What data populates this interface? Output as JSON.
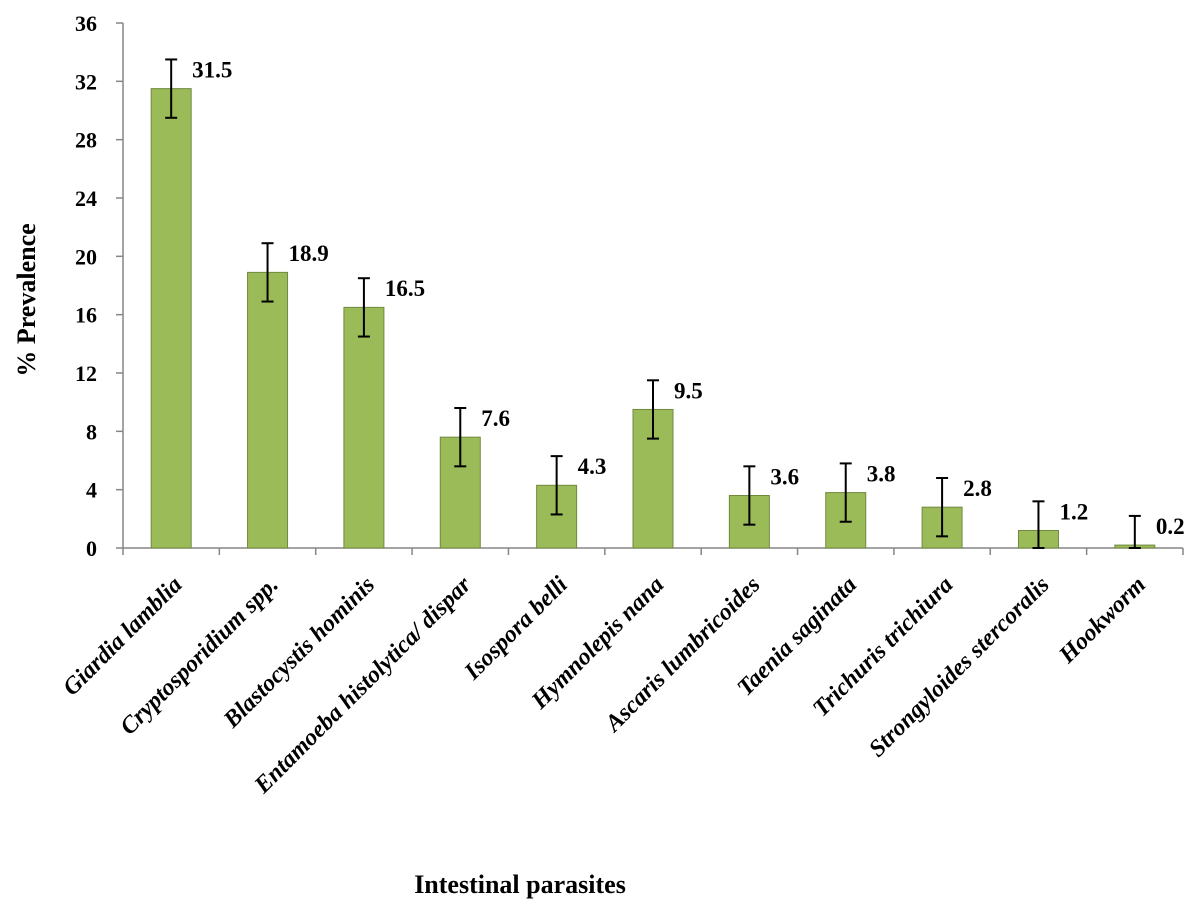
{
  "chart_data": {
    "type": "bar",
    "title": "",
    "xlabel": "Intestinal parasites",
    "ylabel": "% Prevalence",
    "ylim": [
      0,
      36
    ],
    "yticks": [
      0,
      4,
      8,
      12,
      16,
      20,
      24,
      28,
      32,
      36
    ],
    "grid": false,
    "legend": "none",
    "bar_color": "#9bbb59",
    "bar_edge_color": "#71893f",
    "error_bar_color": "#000000",
    "categories": [
      "Giardia lamblia",
      "Cryptosporidium spp.",
      "Blastocystis hominis",
      "Entamoeba histolytica/ dispar",
      "Isospora belli",
      "Hymnolepis nana",
      "Ascaris lumbricoides",
      "Taenia saginata",
      "Trichuris trichiura",
      "Strongyloides stercoralis",
      "Hookworm"
    ],
    "values": [
      31.5,
      18.9,
      16.5,
      7.6,
      4.3,
      9.5,
      3.6,
      3.8,
      2.8,
      1.2,
      0.2
    ],
    "data_labels": [
      "31.5",
      "18.9",
      "16.5",
      "7.6",
      "4.3",
      "9.5",
      "3.6",
      "3.8",
      "2.8",
      "1.2",
      "0.2"
    ],
    "error": [
      2,
      2,
      2,
      2,
      2,
      2,
      2,
      2,
      2,
      2,
      2
    ]
  }
}
